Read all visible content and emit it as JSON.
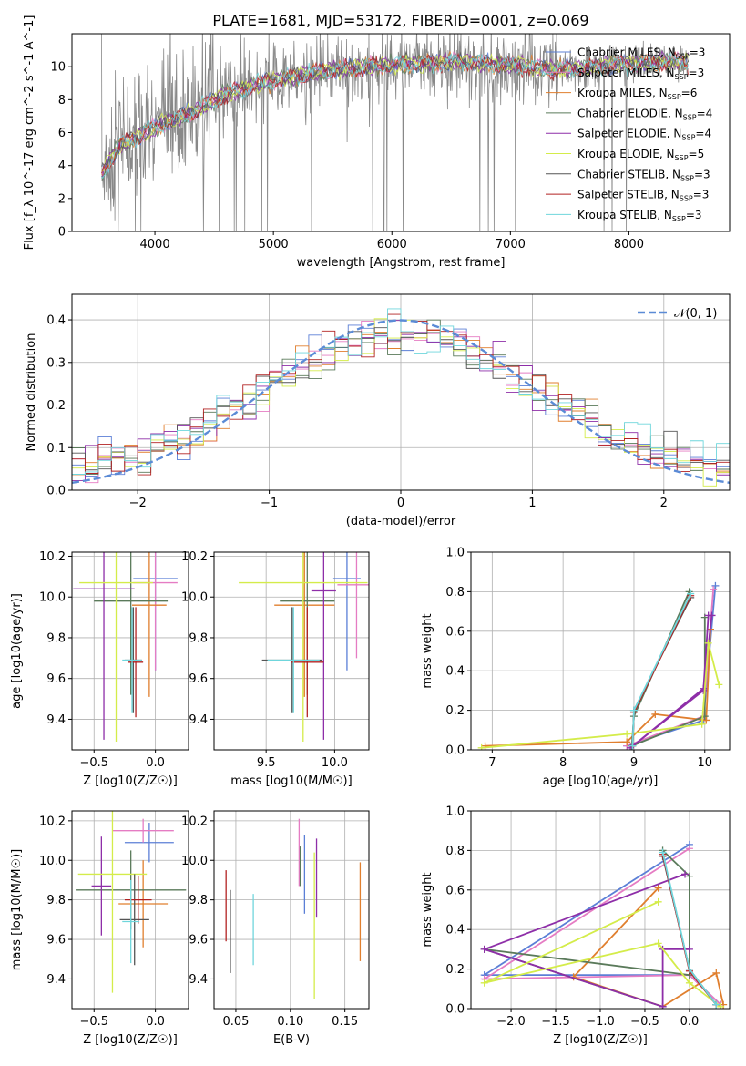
{
  "figure_title": "PLATE=1681, MJD=53172, FIBERID=0001, z=0.069",
  "chart_data": [
    {
      "type": "line",
      "title": "PLATE=1681, MJD=53172, FIBERID=0001, z=0.069",
      "xlabel": "wavelength [Angstrom, rest frame]",
      "ylabel": "Flux [f_λ 10^-17 erg cm^-2 s^-1 A^-1]",
      "xlim": [
        3300,
        8850
      ],
      "ylim": [
        0,
        12
      ],
      "xticks": [
        4000,
        5000,
        6000,
        7000,
        8000
      ],
      "yticks": [
        0,
        2,
        4,
        6,
        8,
        10
      ],
      "legend": "right",
      "series": [
        {
          "name": "Chabrier MILES, N_SSP=3",
          "color": "#5b7fd6"
        },
        {
          "name": "Salpeter MILES, N_SSP=3",
          "color": "#e57cc3"
        },
        {
          "name": "Kroupa MILES, N_SSP=6",
          "color": "#e07f2e"
        },
        {
          "name": "Chabrier ELODIE, N_SSP=4",
          "color": "#5a7a5a"
        },
        {
          "name": "Salpeter ELODIE, N_SSP=4",
          "color": "#8e2ea8"
        },
        {
          "name": "Kroupa ELODIE, N_SSP=5",
          "color": "#d4ec4a"
        },
        {
          "name": "Chabrier STELIB, N_SSP=3",
          "color": "#555555"
        },
        {
          "name": "Salpeter STELIB, N_SSP=3",
          "color": "#b22222"
        },
        {
          "name": "Kroupa STELIB, N_SSP=3",
          "color": "#6fd6dc"
        }
      ],
      "data_color": "#888888",
      "continuum": [
        [
          3550,
          3.5
        ],
        [
          3700,
          5.2
        ],
        [
          4000,
          6.3
        ],
        [
          4300,
          7.2
        ],
        [
          4600,
          8.3
        ],
        [
          5000,
          9.2
        ],
        [
          5500,
          9.8
        ],
        [
          6000,
          10.1
        ],
        [
          6500,
          10.3
        ],
        [
          7000,
          10.1
        ],
        [
          7400,
          9.8
        ],
        [
          8000,
          10.2
        ],
        [
          8500,
          10.3
        ]
      ]
    },
    {
      "type": "histogram",
      "xlabel": "(data-model)/error",
      "ylabel": "Normed distribution",
      "xlim": [
        -2.5,
        2.5
      ],
      "ylim": [
        0,
        0.46
      ],
      "xticks": [
        -2,
        -1,
        0,
        1,
        2
      ],
      "yticks": [
        0.0,
        0.1,
        0.2,
        0.3,
        0.4
      ],
      "bin_width": 0.1,
      "reference_curve": {
        "name": "𝒩(0, 1)",
        "color": "#5b8bd6",
        "mean": 0,
        "sigma": 1
      },
      "legend": "top-right"
    },
    {
      "type": "scatter",
      "xlabel": "Z [log10(Z/Z☉)]",
      "ylabel": "age  [log10(age/yr)]",
      "xlim": [
        -0.68,
        0.27
      ],
      "ylim": [
        9.25,
        10.22
      ],
      "xticks": [
        -0.5,
        0.0
      ],
      "yticks": [
        9.4,
        9.6,
        9.8,
        10.0,
        10.2
      ],
      "points": [
        {
          "x": 0.0,
          "xerr": 0.18,
          "y": 10.09,
          "yerr": 0.45,
          "color": "#5b7fd6"
        },
        {
          "x": 0.0,
          "xerr": 0.18,
          "y": 10.07,
          "yerr": 0.43,
          "color": "#e57cc3"
        },
        {
          "x": -0.05,
          "xerr": 0.14,
          "y": 9.96,
          "yerr": 0.45,
          "color": "#e07f2e"
        },
        {
          "x": -0.2,
          "xerr": 0.3,
          "y": 9.98,
          "yerr": 0.46,
          "color": "#5a7a5a"
        },
        {
          "x": -0.42,
          "xerr": 0.25,
          "y": 10.04,
          "yerr": 0.74,
          "color": "#8e2ea8"
        },
        {
          "x": -0.32,
          "xerr": 0.3,
          "y": 10.07,
          "yerr": 0.78,
          "color": "#d4ec4a"
        },
        {
          "x": -0.18,
          "xerr": 0.07,
          "y": 9.69,
          "yerr": 0.26,
          "color": "#555555"
        },
        {
          "x": -0.16,
          "xerr": 0.06,
          "y": 9.68,
          "yerr": 0.27,
          "color": "#b22222"
        },
        {
          "x": -0.19,
          "xerr": 0.08,
          "y": 9.69,
          "yerr": 0.26,
          "color": "#6fd6dc"
        }
      ]
    },
    {
      "type": "scatter",
      "xlabel": "mass [log10(M/M☉)]",
      "ylabel": "",
      "xlim": [
        9.12,
        10.25
      ],
      "ylim": [
        9.25,
        10.22
      ],
      "xticks": [
        9.5,
        10.0
      ],
      "yticks": [
        9.4,
        9.6,
        9.8,
        10.0,
        10.2
      ],
      "points": [
        {
          "x": 10.09,
          "xerr": 0.1,
          "y": 10.09,
          "yerr": 0.45,
          "color": "#5b7fd6"
        },
        {
          "x": 10.16,
          "xerr": 0.14,
          "y": 10.06,
          "yerr": 0.36,
          "color": "#e57cc3"
        },
        {
          "x": 9.78,
          "xerr": 0.22,
          "y": 9.96,
          "yerr": 0.45,
          "color": "#e07f2e"
        },
        {
          "x": 9.8,
          "xerr": 0.2,
          "y": 9.98,
          "yerr": 0.46,
          "color": "#5a7a5a"
        },
        {
          "x": 9.92,
          "xerr": 0.09,
          "y": 10.03,
          "yerr": 0.73,
          "color": "#8e2ea8"
        },
        {
          "x": 9.77,
          "xerr": 0.47,
          "y": 10.07,
          "yerr": 0.78,
          "color": "#d4ec4a"
        },
        {
          "x": 9.69,
          "xerr": 0.22,
          "y": 9.69,
          "yerr": 0.26,
          "color": "#555555"
        },
        {
          "x": 9.8,
          "xerr": 0.12,
          "y": 9.68,
          "yerr": 0.27,
          "color": "#b22222"
        },
        {
          "x": 9.7,
          "xerr": 0.19,
          "y": 9.69,
          "yerr": 0.26,
          "color": "#6fd6dc"
        }
      ]
    },
    {
      "type": "line",
      "xlabel": "age  [log10(age/yr)]",
      "ylabel": "mass weight",
      "xlim": [
        6.7,
        10.35
      ],
      "ylim": [
        0,
        1.0
      ],
      "xticks": [
        7,
        8,
        9,
        10
      ],
      "yticks": [
        0.0,
        0.2,
        0.4,
        0.6,
        0.8,
        1.0
      ],
      "series": [
        {
          "color": "#5b7fd6",
          "x": [
            10.15,
            9.98,
            8.9
          ],
          "y": [
            0.83,
            0.15,
            0.02
          ]
        },
        {
          "color": "#e57cc3",
          "x": [
            10.12,
            9.98,
            8.9
          ],
          "y": [
            0.81,
            0.17,
            0.02
          ]
        },
        {
          "color": "#e07f2e",
          "x": [
            10.08,
            10.02,
            9.3,
            8.9,
            6.9
          ],
          "y": [
            0.61,
            0.15,
            0.18,
            0.04,
            0.02
          ]
        },
        {
          "color": "#5a7a5a",
          "x": [
            9.78,
            9.0,
            8.97,
            10.0,
            10.0
          ],
          "y": [
            0.8,
            0.17,
            0.02,
            0.17,
            0.67
          ]
        },
        {
          "color": "#8e2ea8",
          "x": [
            10.1,
            9.98,
            8.95,
            9.98,
            10.05
          ],
          "y": [
            0.68,
            0.31,
            0.01,
            0.3,
            0.68
          ]
        },
        {
          "color": "#d4ec4a",
          "x": [
            10.2,
            10.05,
            9.96,
            8.9,
            6.85
          ],
          "y": [
            0.33,
            0.54,
            0.13,
            0.08,
            0.01
          ]
        },
        {
          "color": "#555555",
          "x": [
            9.8,
            9.0,
            8.98
          ],
          "y": [
            0.77,
            0.2,
            0.02
          ]
        },
        {
          "color": "#b22222",
          "x": [
            9.8,
            9.0,
            8.98
          ],
          "y": [
            0.78,
            0.19,
            0.02
          ]
        },
        {
          "color": "#6fd6dc",
          "x": [
            9.8,
            9.0,
            8.98
          ],
          "y": [
            0.79,
            0.2,
            0.02
          ]
        }
      ]
    },
    {
      "type": "scatter",
      "xlabel": "Z [log10(Z/Z☉)]",
      "ylabel": "mass [log10(M/M☉)]",
      "xlim": [
        -0.68,
        0.27
      ],
      "ylim": [
        9.25,
        10.25
      ],
      "xticks": [
        -0.5,
        0.0
      ],
      "yticks": [
        9.4,
        9.6,
        9.8,
        10.0,
        10.2
      ],
      "points": [
        {
          "x": -0.05,
          "xerr": 0.2,
          "y": 10.09,
          "yerr": 0.1,
          "color": "#5b7fd6"
        },
        {
          "x": -0.1,
          "xerr": 0.25,
          "y": 10.15,
          "yerr": 0.06,
          "color": "#e57cc3"
        },
        {
          "x": -0.1,
          "xerr": 0.2,
          "y": 9.78,
          "yerr": 0.22,
          "color": "#e07f2e"
        },
        {
          "x": -0.2,
          "xerr": 0.45,
          "y": 9.85,
          "yerr": 0.2,
          "color": "#5a7a5a"
        },
        {
          "x": -0.44,
          "xerr": 0.08,
          "y": 9.87,
          "yerr": 0.25,
          "color": "#8e2ea8"
        },
        {
          "x": -0.35,
          "xerr": 0.28,
          "y": 9.93,
          "yerr": 0.6,
          "color": "#d4ec4a"
        },
        {
          "x": -0.17,
          "xerr": 0.12,
          "y": 9.7,
          "yerr": 0.23,
          "color": "#555555"
        },
        {
          "x": -0.14,
          "xerr": 0.11,
          "y": 9.8,
          "yerr": 0.12,
          "color": "#b22222"
        },
        {
          "x": -0.2,
          "xerr": 0.07,
          "y": 9.69,
          "yerr": 0.21,
          "color": "#6fd6dc"
        }
      ]
    },
    {
      "type": "scatter",
      "xlabel": "E(B-V)",
      "ylabel": "",
      "xlim": [
        0.03,
        0.172
      ],
      "ylim": [
        9.25,
        10.25
      ],
      "xticks": [
        0.05,
        0.1,
        0.15
      ],
      "yticks": [
        9.4,
        9.6,
        9.8,
        10.0,
        10.2
      ],
      "points": [
        {
          "x": 0.113,
          "y": 9.93,
          "yerr": 0.2,
          "color": "#5b7fd6"
        },
        {
          "x": 0.108,
          "y": 10.04,
          "yerr": 0.17,
          "color": "#e57cc3"
        },
        {
          "x": 0.164,
          "y": 9.74,
          "yerr": 0.25,
          "color": "#e07f2e"
        },
        {
          "x": 0.109,
          "y": 9.97,
          "yerr": 0.1,
          "color": "#5a7a5a"
        },
        {
          "x": 0.124,
          "y": 9.91,
          "yerr": 0.2,
          "color": "#8e2ea8"
        },
        {
          "x": 0.122,
          "y": 9.67,
          "yerr": 0.37,
          "color": "#d4ec4a"
        },
        {
          "x": 0.045,
          "y": 9.64,
          "yerr": 0.21,
          "color": "#555555"
        },
        {
          "x": 0.041,
          "y": 9.77,
          "yerr": 0.18,
          "color": "#b22222"
        },
        {
          "x": 0.066,
          "y": 9.65,
          "yerr": 0.18,
          "color": "#6fd6dc"
        }
      ]
    },
    {
      "type": "line",
      "xlabel": "Z [log10(Z/Z☉)]",
      "ylabel": "mass weight",
      "xlim": [
        -2.45,
        0.45
      ],
      "ylim": [
        0,
        1.0
      ],
      "xticks": [
        -2.0,
        -1.5,
        -1.0,
        -0.5,
        0.0
      ],
      "yticks": [
        0.0,
        0.2,
        0.4,
        0.6,
        0.8,
        1.0
      ],
      "series": [
        {
          "color": "#5b7fd6",
          "x": [
            0.0,
            -2.3,
            0.0,
            0.35
          ],
          "y": [
            0.83,
            0.17,
            0.17,
            0.02
          ]
        },
        {
          "color": "#e57cc3",
          "x": [
            0.0,
            -2.3,
            0.0,
            0.35
          ],
          "y": [
            0.81,
            0.15,
            0.17,
            0.02
          ]
        },
        {
          "color": "#e07f2e",
          "x": [
            -0.35,
            -1.3,
            -0.3,
            0.3,
            0.38
          ],
          "y": [
            0.61,
            0.16,
            0.01,
            0.18,
            0.02
          ]
        },
        {
          "color": "#5a7a5a",
          "x": [
            -0.3,
            0.0,
            0.0,
            -2.3,
            -0.3
          ],
          "y": [
            0.8,
            0.67,
            0.17,
            0.3,
            0.01
          ]
        },
        {
          "color": "#8e2ea8",
          "x": [
            -0.05,
            -2.3,
            -0.3,
            -0.3,
            0.0
          ],
          "y": [
            0.68,
            0.3,
            0.01,
            0.3,
            0.3
          ]
        },
        {
          "color": "#d4ec4a",
          "x": [
            -0.35,
            -2.3,
            -0.35,
            0.0,
            0.35
          ],
          "y": [
            0.54,
            0.13,
            0.33,
            0.13,
            0.01
          ]
        },
        {
          "color": "#555555",
          "x": [
            -0.3,
            0.0,
            0.3
          ],
          "y": [
            0.77,
            0.2,
            0.02
          ]
        },
        {
          "color": "#b22222",
          "x": [
            -0.3,
            0.0,
            0.3
          ],
          "y": [
            0.78,
            0.19,
            0.02
          ]
        },
        {
          "color": "#6fd6dc",
          "x": [
            -0.3,
            0.0,
            0.3
          ],
          "y": [
            0.79,
            0.2,
            0.02
          ]
        }
      ]
    }
  ]
}
